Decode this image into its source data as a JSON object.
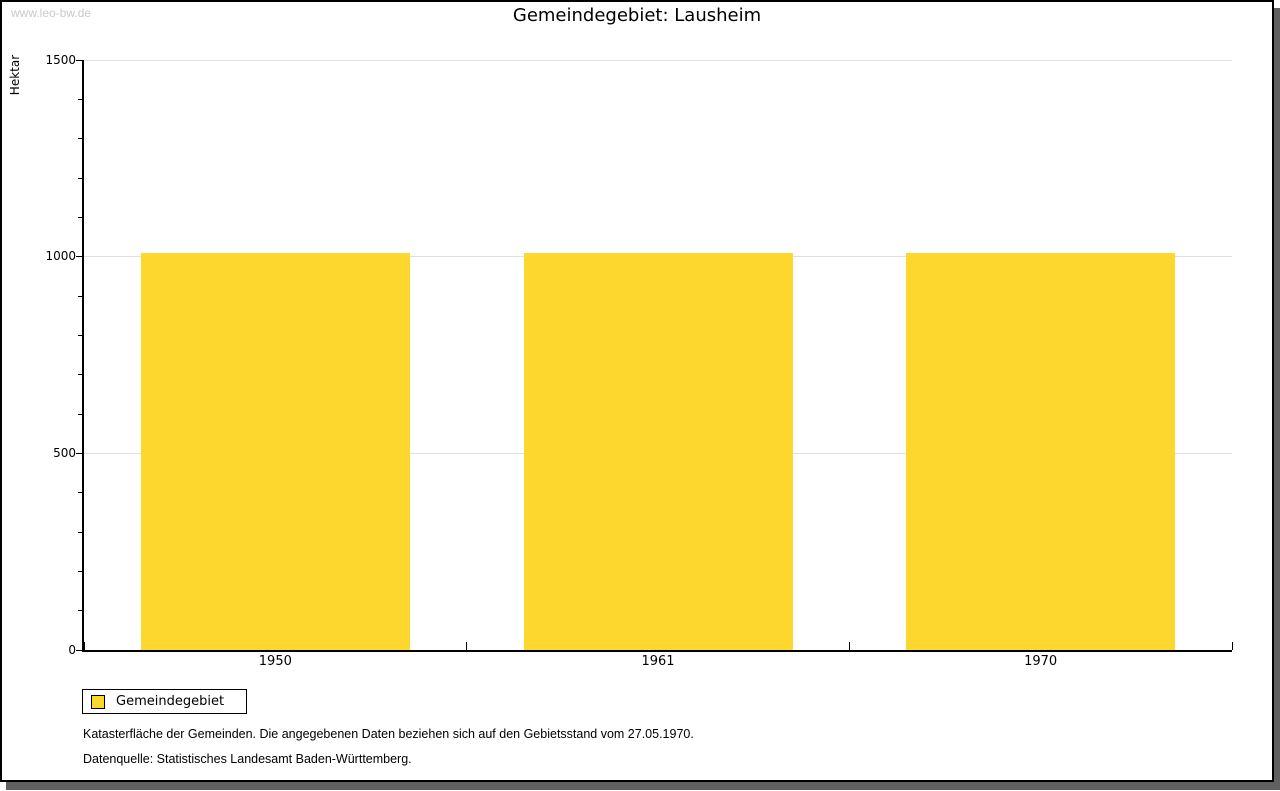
{
  "watermark": "www.leo-bw.de",
  "header": {
    "title": "Gemeindegebiet: Lausheim"
  },
  "legend": {
    "label": "Gemeindegebiet",
    "swatch_color": "#FDD62E"
  },
  "footnotes": {
    "line1": "Katasterfläche der Gemeinden. Die angegebenen Daten beziehen sich auf den Gebietsstand vom 27.05.1970.",
    "line2": "Datenquelle: Statistisches Landesamt Baden-Württemberg."
  },
  "chart_data": {
    "type": "bar",
    "title": "Gemeindegebiet: Lausheim",
    "categories": [
      "1950",
      "1961",
      "1970"
    ],
    "series": [
      {
        "name": "Gemeindegebiet",
        "values": [
          1010,
          1010,
          1010
        ],
        "color": "#FDD62E"
      }
    ],
    "xlabel": "",
    "ylabel": "Hektar",
    "ylim": [
      0,
      1500
    ],
    "ytick_major": 500,
    "ytick_minor": 100,
    "grid": "horizontal-major",
    "legend_position": "bottom-left"
  },
  "colors": {
    "bar": "#FDD62E",
    "gridline": "#e0e0e0",
    "axis": "#000000",
    "watermark_text": "#c9c9c9",
    "panel_border": "#000000",
    "panel_shadow": "#606060"
  }
}
